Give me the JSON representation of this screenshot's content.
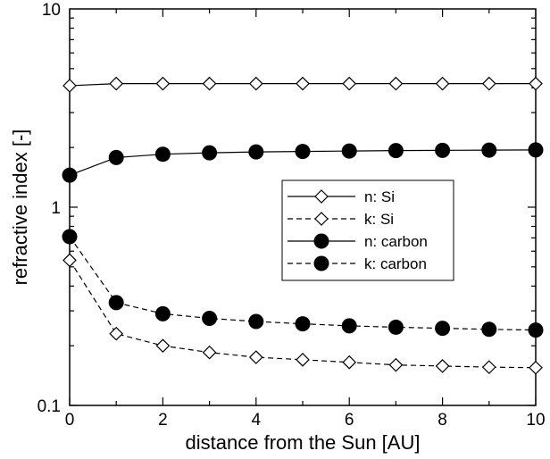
{
  "chart_data": {
    "type": "line",
    "title": "",
    "xlabel": "distance from the Sun [AU]",
    "ylabel": "refractive index [-]",
    "xlim": [
      0,
      10
    ],
    "ylim": [
      0.1,
      10
    ],
    "yscale": "log",
    "grid": false,
    "legend_position": "center-right",
    "x_ticks": [
      0,
      2,
      4,
      6,
      8,
      10
    ],
    "x_tick_labels": [
      "0",
      "2",
      "4",
      "6",
      "8",
      "10"
    ],
    "y_ticks": [
      0.1,
      1,
      10
    ],
    "y_tick_labels": [
      "0.1",
      "1",
      "10"
    ],
    "x": [
      0,
      1,
      2,
      3,
      4,
      5,
      6,
      7,
      8,
      9,
      10
    ],
    "series": [
      {
        "name": "n: Si",
        "marker": "open-diamond",
        "line": "solid",
        "values": [
          4.1,
          4.2,
          4.2,
          4.2,
          4.2,
          4.2,
          4.2,
          4.2,
          4.2,
          4.2,
          4.2
        ]
      },
      {
        "name": "k: Si",
        "marker": "open-diamond",
        "line": "dashed",
        "values": [
          0.54,
          0.23,
          0.2,
          0.185,
          0.175,
          0.17,
          0.165,
          0.16,
          0.158,
          0.156,
          0.155
        ]
      },
      {
        "name": "n: carbon",
        "marker": "filled-circle",
        "line": "solid",
        "values": [
          1.45,
          1.78,
          1.85,
          1.88,
          1.9,
          1.91,
          1.92,
          1.93,
          1.935,
          1.94,
          1.945
        ]
      },
      {
        "name": "k: carbon",
        "marker": "filled-circle",
        "line": "dashed",
        "values": [
          0.71,
          0.33,
          0.29,
          0.275,
          0.265,
          0.258,
          0.252,
          0.248,
          0.245,
          0.242,
          0.24
        ]
      }
    ],
    "colors": {
      "line": "#000000",
      "background": "#ffffff"
    }
  }
}
